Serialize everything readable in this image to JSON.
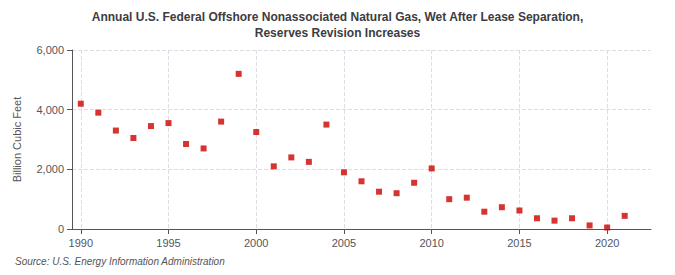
{
  "chart_data": {
    "type": "scatter",
    "title": "Annual U.S. Federal Offshore Nonassociated Natural Gas, Wet After Lease Separation,\nReserves Revision Increases",
    "ylabel": "Billion Cubic Feet",
    "annotations": [
      "Source: U.S. Energy Information Administration"
    ],
    "x": [
      1990,
      1991,
      1992,
      1993,
      1994,
      1995,
      1996,
      1997,
      1998,
      1999,
      2000,
      2001,
      2002,
      2003,
      2004,
      2005,
      2006,
      2007,
      2008,
      2009,
      2010,
      2011,
      2012,
      2013,
      2014,
      2015,
      2016,
      2017,
      2018,
      2019,
      2020,
      2021
    ],
    "values": [
      4200,
      3900,
      3300,
      3050,
      3450,
      3550,
      2850,
      2700,
      3600,
      5200,
      3250,
      2100,
      2400,
      2250,
      3500,
      1900,
      1600,
      1250,
      1200,
      1550,
      2030,
      1000,
      1050,
      580,
      730,
      620,
      360,
      280,
      360,
      120,
      50,
      440
    ],
    "color": "#cc0000",
    "marker": "square",
    "xlim": [
      1989.5,
      2022.5
    ],
    "xticks": [
      1990,
      1995,
      2000,
      2005,
      2010,
      2015,
      2020
    ],
    "ylim": [
      0,
      6000
    ],
    "yticks": [
      0,
      {
        "value": 2000,
        "label": "2,000"
      },
      {
        "value": 4000,
        "label": "4,000"
      },
      {
        "value": 6000,
        "label": "6,000"
      }
    ],
    "grid": true
  }
}
